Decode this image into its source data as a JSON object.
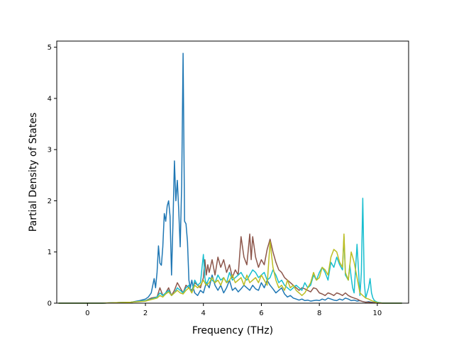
{
  "chart_data": {
    "type": "line",
    "title": "",
    "xlabel": "Frequency (THz)",
    "ylabel": "Partial Density of States",
    "xlim": [
      -1.06,
      11.08
    ],
    "ylim": [
      0,
      5.12
    ],
    "xticks": [
      0,
      2,
      4,
      6,
      8,
      10
    ],
    "yticks": [
      0,
      1,
      2,
      3,
      4,
      5
    ],
    "grid": false,
    "legend": "none",
    "series": [
      {
        "color": "#1f77b4",
        "x": [
          -1.0,
          0.5,
          1.0,
          1.5,
          1.8,
          2.0,
          2.1,
          2.2,
          2.3,
          2.35,
          2.4,
          2.45,
          2.5,
          2.55,
          2.6,
          2.65,
          2.7,
          2.75,
          2.8,
          2.85,
          2.9,
          2.95,
          3.0,
          3.05,
          3.1,
          3.15,
          3.2,
          3.25,
          3.3,
          3.35,
          3.4,
          3.45,
          3.5,
          3.55,
          3.6,
          3.65,
          3.7,
          3.8,
          3.9,
          4.0,
          4.1,
          4.2,
          4.3,
          4.4,
          4.5,
          4.6,
          4.7,
          4.8,
          4.9,
          5.0,
          5.1,
          5.2,
          5.3,
          5.4,
          5.5,
          5.6,
          5.7,
          5.8,
          5.9,
          6.0,
          6.1,
          6.2,
          6.3,
          6.4,
          6.5,
          6.6,
          6.7,
          6.8,
          6.9,
          7.0,
          7.1,
          7.2,
          7.3,
          7.4,
          7.5,
          7.6,
          7.7,
          7.8,
          7.9,
          8.0,
          8.1,
          8.2,
          8.3,
          8.4,
          8.5,
          8.6,
          8.7,
          8.8,
          8.9,
          9.0,
          9.1,
          9.2,
          9.3,
          9.4,
          9.5,
          9.6,
          9.7,
          9.8,
          9.9,
          10.0,
          10.2,
          10.5,
          10.85
        ],
        "values": [
          0,
          0,
          0.01,
          0.02,
          0.05,
          0.08,
          0.12,
          0.2,
          0.48,
          0.3,
          0.6,
          1.12,
          0.78,
          0.74,
          1.1,
          1.75,
          1.6,
          1.9,
          2.0,
          1.7,
          0.55,
          1.55,
          2.78,
          2.0,
          2.4,
          1.8,
          1.1,
          2.3,
          4.88,
          1.6,
          1.55,
          1.2,
          0.45,
          0.3,
          0.45,
          0.3,
          0.2,
          0.15,
          0.25,
          0.2,
          0.4,
          0.3,
          0.55,
          0.35,
          0.25,
          0.35,
          0.2,
          0.3,
          0.45,
          0.25,
          0.3,
          0.22,
          0.28,
          0.35,
          0.3,
          0.25,
          0.35,
          0.28,
          0.25,
          0.4,
          0.3,
          0.45,
          0.35,
          0.28,
          0.2,
          0.25,
          0.3,
          0.18,
          0.12,
          0.15,
          0.1,
          0.08,
          0.06,
          0.08,
          0.05,
          0.06,
          0.04,
          0.05,
          0.06,
          0.05,
          0.08,
          0.06,
          0.1,
          0.08,
          0.06,
          0.05,
          0.08,
          0.06,
          0.1,
          0.08,
          0.05,
          0.06,
          0.04,
          0.05,
          0.03,
          0.02,
          0.03,
          0.02,
          0.01,
          0.01,
          0,
          0,
          0
        ]
      },
      {
        "color": "#8c564b",
        "x": [
          -1.0,
          0.5,
          1.0,
          1.5,
          2.0,
          2.2,
          2.4,
          2.5,
          2.6,
          2.7,
          2.8,
          2.9,
          3.0,
          3.1,
          3.2,
          3.3,
          3.4,
          3.5,
          3.6,
          3.7,
          3.8,
          3.9,
          4.0,
          4.05,
          4.1,
          4.15,
          4.2,
          4.3,
          4.4,
          4.5,
          4.6,
          4.7,
          4.8,
          4.9,
          5.0,
          5.1,
          5.2,
          5.3,
          5.4,
          5.5,
          5.6,
          5.65,
          5.7,
          5.8,
          5.9,
          6.0,
          6.1,
          6.2,
          6.3,
          6.4,
          6.5,
          6.6,
          6.7,
          6.8,
          6.9,
          7.0,
          7.1,
          7.2,
          7.3,
          7.4,
          7.5,
          7.6,
          7.7,
          7.8,
          7.9,
          8.0,
          8.1,
          8.2,
          8.3,
          8.4,
          8.5,
          8.6,
          8.7,
          8.8,
          8.9,
          9.0,
          9.1,
          9.2,
          9.3,
          9.4,
          9.5,
          9.6,
          9.7,
          9.8,
          9.9,
          10.0,
          10.2,
          10.5,
          10.85
        ],
        "values": [
          0,
          0,
          0.01,
          0.02,
          0.05,
          0.1,
          0.12,
          0.3,
          0.15,
          0.2,
          0.3,
          0.15,
          0.25,
          0.4,
          0.3,
          0.2,
          0.35,
          0.3,
          0.25,
          0.4,
          0.35,
          0.3,
          0.5,
          0.85,
          0.55,
          0.75,
          0.6,
          0.85,
          0.55,
          0.9,
          0.7,
          0.85,
          0.6,
          0.75,
          0.5,
          0.65,
          0.55,
          1.3,
          0.9,
          0.75,
          1.35,
          0.85,
          1.3,
          0.9,
          0.7,
          0.85,
          0.75,
          1.05,
          1.25,
          1.0,
          0.8,
          0.65,
          0.6,
          0.5,
          0.45,
          0.4,
          0.35,
          0.3,
          0.25,
          0.3,
          0.28,
          0.25,
          0.22,
          0.3,
          0.28,
          0.2,
          0.18,
          0.15,
          0.2,
          0.18,
          0.15,
          0.2,
          0.18,
          0.15,
          0.2,
          0.15,
          0.12,
          0.1,
          0.08,
          0.05,
          0.03,
          0.02,
          0.02,
          0.01,
          0.01,
          0,
          0,
          0,
          0
        ]
      },
      {
        "color": "#17becf",
        "x": [
          -1.0,
          0.5,
          1.0,
          1.5,
          2.0,
          2.2,
          2.4,
          2.5,
          2.6,
          2.7,
          2.8,
          2.9,
          3.0,
          3.1,
          3.2,
          3.3,
          3.4,
          3.5,
          3.6,
          3.7,
          3.8,
          3.9,
          4.0,
          4.05,
          4.1,
          4.2,
          4.3,
          4.4,
          4.5,
          4.6,
          4.7,
          4.8,
          4.9,
          5.0,
          5.1,
          5.2,
          5.3,
          5.4,
          5.5,
          5.6,
          5.7,
          5.8,
          5.9,
          6.0,
          6.1,
          6.2,
          6.3,
          6.4,
          6.5,
          6.6,
          6.7,
          6.8,
          6.9,
          7.0,
          7.1,
          7.2,
          7.3,
          7.4,
          7.5,
          7.6,
          7.7,
          7.8,
          7.9,
          8.0,
          8.1,
          8.2,
          8.3,
          8.4,
          8.5,
          8.6,
          8.7,
          8.8,
          8.85,
          8.9,
          9.0,
          9.05,
          9.1,
          9.15,
          9.2,
          9.3,
          9.4,
          9.45,
          9.5,
          9.55,
          9.6,
          9.7,
          9.75,
          9.8,
          9.85,
          9.9,
          10.0,
          10.2,
          10.5,
          10.85
        ],
        "values": [
          0,
          0,
          0.01,
          0.02,
          0.05,
          0.08,
          0.12,
          0.2,
          0.15,
          0.2,
          0.25,
          0.15,
          0.2,
          0.3,
          0.25,
          0.2,
          0.3,
          0.35,
          0.2,
          0.45,
          0.35,
          0.4,
          0.95,
          0.5,
          0.35,
          0.5,
          0.45,
          0.4,
          0.55,
          0.45,
          0.5,
          0.4,
          0.6,
          0.45,
          0.5,
          0.55,
          0.6,
          0.5,
          0.45,
          0.55,
          0.65,
          0.6,
          0.5,
          0.55,
          0.6,
          0.45,
          0.5,
          0.65,
          0.55,
          0.4,
          0.45,
          0.35,
          0.3,
          0.25,
          0.3,
          0.35,
          0.3,
          0.25,
          0.4,
          0.3,
          0.35,
          0.55,
          0.45,
          0.6,
          0.7,
          0.6,
          0.45,
          0.8,
          0.7,
          0.9,
          0.75,
          0.65,
          1.3,
          0.55,
          0.45,
          0.75,
          0.5,
          0.3,
          0.2,
          1.15,
          0.15,
          0.6,
          2.05,
          0.4,
          0.1,
          0.3,
          0.48,
          0.2,
          0.1,
          0.05,
          0.02,
          0,
          0,
          0
        ]
      },
      {
        "color": "#bcbd22",
        "x": [
          -1.0,
          0.5,
          1.0,
          1.5,
          2.0,
          2.2,
          2.4,
          2.5,
          2.6,
          2.7,
          2.8,
          2.9,
          3.0,
          3.1,
          3.2,
          3.3,
          3.4,
          3.5,
          3.6,
          3.7,
          3.8,
          3.9,
          4.0,
          4.1,
          4.2,
          4.3,
          4.4,
          4.5,
          4.6,
          4.7,
          4.8,
          4.9,
          5.0,
          5.1,
          5.2,
          5.3,
          5.4,
          5.5,
          5.6,
          5.7,
          5.8,
          5.9,
          6.0,
          6.1,
          6.2,
          6.3,
          6.4,
          6.5,
          6.6,
          6.7,
          6.8,
          6.9,
          7.0,
          7.1,
          7.2,
          7.3,
          7.4,
          7.5,
          7.6,
          7.7,
          7.8,
          7.9,
          8.0,
          8.1,
          8.2,
          8.3,
          8.4,
          8.5,
          8.6,
          8.7,
          8.8,
          8.85,
          8.9,
          9.0,
          9.1,
          9.2,
          9.3,
          9.4,
          9.5,
          9.6,
          9.7,
          9.8,
          9.9,
          10.0,
          10.2,
          10.5,
          10.85
        ],
        "values": [
          0,
          0,
          0.01,
          0.02,
          0.04,
          0.07,
          0.1,
          0.15,
          0.12,
          0.18,
          0.22,
          0.15,
          0.2,
          0.25,
          0.2,
          0.18,
          0.25,
          0.3,
          0.2,
          0.35,
          0.3,
          0.35,
          0.45,
          0.35,
          0.4,
          0.5,
          0.4,
          0.45,
          0.35,
          0.5,
          0.4,
          0.45,
          0.55,
          0.4,
          0.45,
          0.5,
          0.35,
          0.55,
          0.4,
          0.45,
          0.5,
          0.4,
          0.55,
          0.45,
          0.35,
          1.2,
          0.7,
          0.45,
          0.3,
          0.35,
          0.25,
          0.45,
          0.3,
          0.35,
          0.25,
          0.2,
          0.15,
          0.2,
          0.3,
          0.4,
          0.6,
          0.45,
          0.5,
          0.7,
          0.65,
          0.55,
          0.9,
          1.05,
          1.0,
          0.8,
          0.7,
          1.35,
          0.6,
          0.45,
          1.0,
          0.8,
          0.5,
          0.2,
          0.15,
          0.1,
          0.08,
          0.05,
          0.03,
          0.01,
          0,
          0,
          0
        ]
      }
    ]
  }
}
